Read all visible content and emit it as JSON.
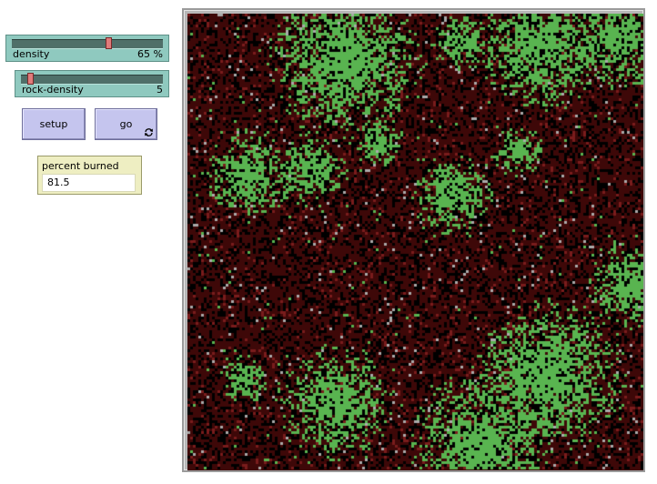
{
  "sliders": [
    {
      "label": "density",
      "value": "65 %",
      "min": 0,
      "max": 100,
      "fraction": 0.65
    },
    {
      "label": "rock-density",
      "value": "5",
      "min": 0,
      "max": 100,
      "fraction": 0.05
    }
  ],
  "buttons": {
    "setup_label": "setup",
    "go_label": "go",
    "go_forever_icon": "forever-arrows-icon"
  },
  "monitor": {
    "label": "percent burned",
    "value": "81.5"
  },
  "world": {
    "burned_color": "#3e0808",
    "tree_color": "#59b450",
    "ember_color": "#7a1c1c",
    "ash_color": "#000000",
    "rock_color": "#aaaaaa"
  }
}
